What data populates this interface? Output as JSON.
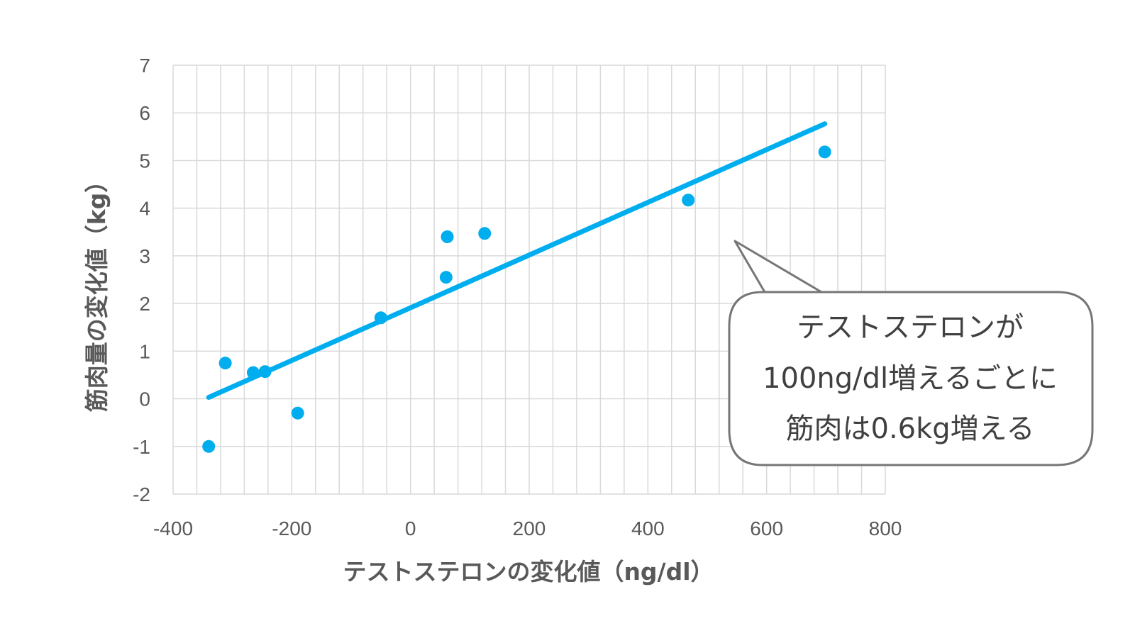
{
  "chart_data": {
    "type": "scatter",
    "xlabel": "テストステロンの変化値（ng/dl）",
    "ylabel": "筋肉量の変化値（kg）",
    "xlim": [
      -400,
      800
    ],
    "ylim": [
      -2,
      7
    ],
    "x_ticks": [
      "-400",
      "-200",
      "0",
      "200",
      "400",
      "600",
      "800"
    ],
    "y_ticks": [
      "-2",
      "-1",
      "0",
      "1",
      "2",
      "3",
      "4",
      "5",
      "6",
      "7"
    ],
    "grid": true,
    "points": [
      {
        "x": -340,
        "y": -1.0
      },
      {
        "x": -312,
        "y": 0.75
      },
      {
        "x": -265,
        "y": 0.55
      },
      {
        "x": -245,
        "y": 0.57
      },
      {
        "x": -190,
        "y": -0.3
      },
      {
        "x": -50,
        "y": 1.7
      },
      {
        "x": 60,
        "y": 2.55
      },
      {
        "x": 62,
        "y": 3.4
      },
      {
        "x": 125,
        "y": 3.47
      },
      {
        "x": 468,
        "y": 4.17
      },
      {
        "x": 698,
        "y": 5.18
      }
    ],
    "trendline": {
      "x": [
        -340,
        698
      ],
      "y": [
        0.03,
        5.77
      ]
    },
    "colors": {
      "points": "#00AEEF",
      "trendline": "#00AEEF",
      "grid": "#D9D9D9",
      "text": "#595959"
    },
    "annotation": {
      "lines": [
        "テストステロンが",
        "100ng/dl増えるごとに",
        "筋肉は0.6kg増える"
      ]
    }
  }
}
